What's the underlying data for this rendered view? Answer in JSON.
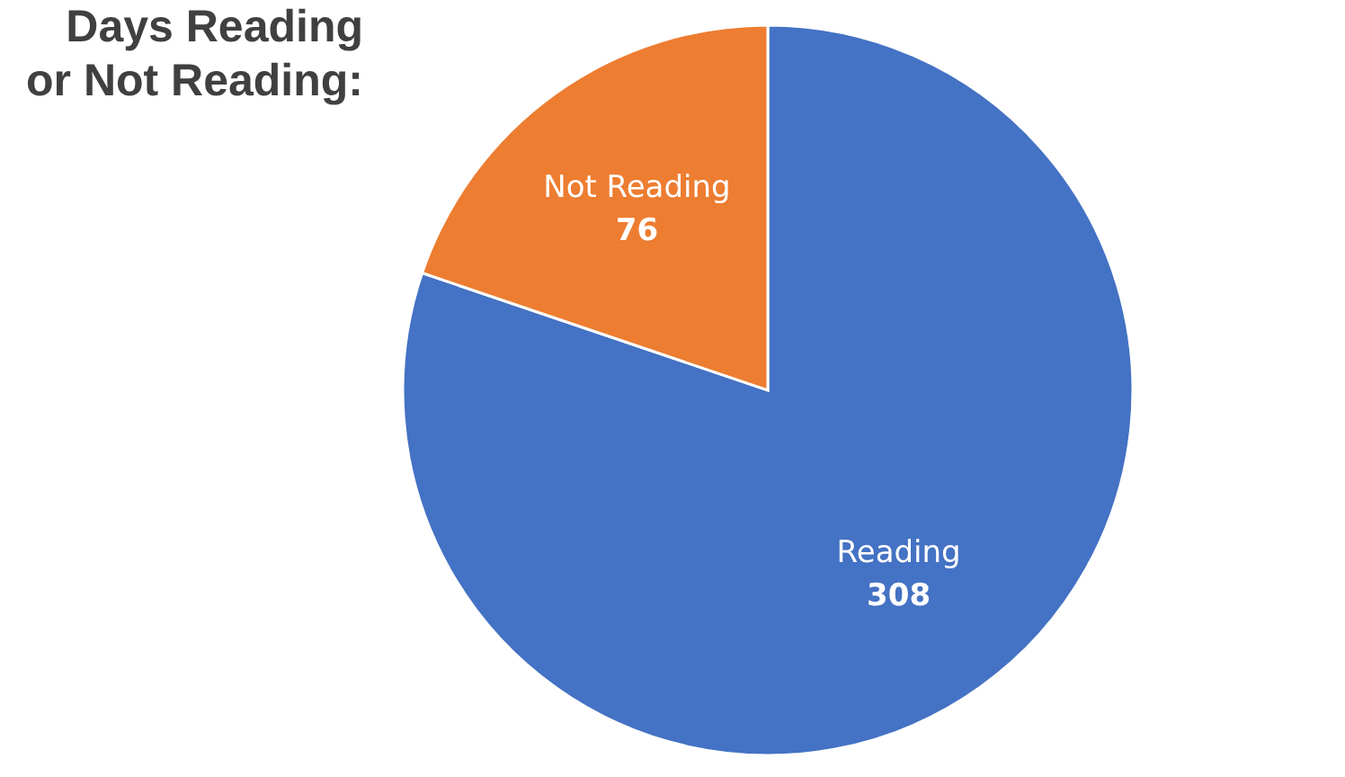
{
  "chart_data": {
    "type": "pie",
    "title": "Days Reading\nor Not Reading:",
    "categories": [
      "Reading",
      "Not Reading"
    ],
    "values": [
      308,
      76
    ],
    "colors": [
      "#4472c4",
      "#ed7d31"
    ],
    "data_labels": true,
    "legend": false
  }
}
